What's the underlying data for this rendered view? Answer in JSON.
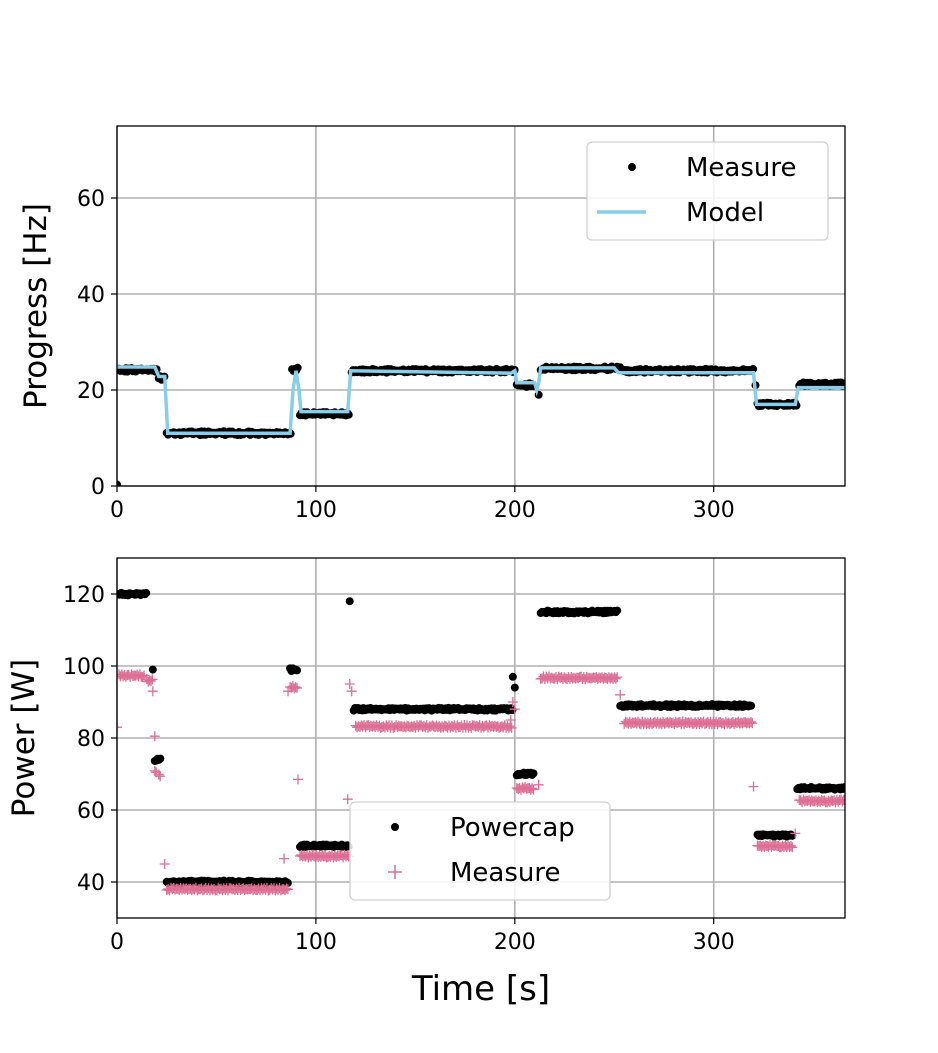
{
  "chart_data": [
    {
      "type": "scatter",
      "ylabel": "Progress [Hz]",
      "xlabel": "",
      "xlim": [
        0,
        366
      ],
      "ylim": [
        0,
        75
      ],
      "xticks": [
        0,
        100,
        200,
        300
      ],
      "yticks": [
        0,
        20,
        40,
        60
      ],
      "grid": true,
      "legend": {
        "placement": "top-right",
        "entries": [
          "Measure",
          "Model"
        ]
      },
      "series": [
        {
          "name": "Measure",
          "kind": "points",
          "color": "#000000",
          "steps": [
            [
              0,
              0,
              0.3
            ],
            [
              1,
              20,
              24.2
            ],
            [
              21,
              24,
              22.5
            ],
            [
              25,
              88,
              11
            ],
            [
              88,
              91,
              24.3
            ],
            [
              92,
              117,
              15
            ],
            [
              118,
              200,
              24
            ],
            [
              201,
              210,
              21
            ],
            [
              212,
              212,
              19
            ],
            [
              213,
              253,
              24.5
            ],
            [
              254,
              320,
              24
            ],
            [
              321,
              321,
              21
            ],
            [
              322,
              342,
              17
            ],
            [
              343,
              366,
              21.2
            ]
          ]
        },
        {
          "name": "Model",
          "kind": "line",
          "color": "#87ceeb",
          "points": [
            [
              0,
              24.8
            ],
            [
              19,
              24.8
            ],
            [
              21,
              22.8
            ],
            [
              24,
              22.8
            ],
            [
              25.5,
              11
            ],
            [
              87,
              11
            ],
            [
              88.5,
              20
            ],
            [
              90,
              24
            ],
            [
              91.5,
              20
            ],
            [
              92.5,
              15.5
            ],
            [
              116,
              15.5
            ],
            [
              117.5,
              24
            ],
            [
              198,
              23.5
            ],
            [
              200,
              24
            ],
            [
              201,
              21.5
            ],
            [
              210,
              21.5
            ],
            [
              211,
              20
            ],
            [
              212,
              21.5
            ],
            [
              213,
              24.6
            ],
            [
              250,
              24.6
            ],
            [
              252,
              23.6
            ],
            [
              320,
              23.6
            ],
            [
              321.5,
              17
            ],
            [
              341,
              17
            ],
            [
              342.5,
              20.5
            ],
            [
              366,
              20.5
            ]
          ]
        }
      ]
    },
    {
      "type": "scatter",
      "ylabel": "Power [W]",
      "xlabel": "Time [s]",
      "xlim": [
        0,
        366
      ],
      "ylim": [
        30,
        130
      ],
      "xticks": [
        0,
        100,
        200,
        300
      ],
      "yticks": [
        40,
        60,
        80,
        100,
        120
      ],
      "grid": true,
      "legend": {
        "placement": "lower-center",
        "entries": [
          "Powercap",
          "Measure"
        ]
      },
      "series": [
        {
          "name": "Powercap",
          "marker": "dot",
          "color": "#000000",
          "steps": [
            [
              0,
              15,
              120
            ],
            [
              18,
              18,
              99
            ],
            [
              19,
              22,
              74
            ],
            [
              25,
              86,
              40
            ],
            [
              87,
              91,
              99
            ],
            [
              92,
              117,
              50
            ],
            [
              117,
              117,
              118
            ],
            [
              119,
              199,
              88
            ],
            [
              199,
              199,
              97
            ],
            [
              200,
              200,
              94
            ],
            [
              201,
              210,
              70
            ],
            [
              213,
              252,
              115
            ],
            [
              253,
              319,
              89
            ],
            [
              322,
              340,
              53
            ],
            [
              342,
              366,
              66
            ]
          ]
        },
        {
          "name": "Measure",
          "marker": "plus",
          "color": "#dd6e94",
          "steps": [
            [
              0,
              0,
              83
            ],
            [
              1,
              14,
              97.3
            ],
            [
              15,
              18,
              96
            ],
            [
              18,
              18,
              93
            ],
            [
              19,
              19,
              80.5
            ],
            [
              19,
              20,
              70.5
            ],
            [
              21,
              22,
              69.5
            ],
            [
              24,
              24,
              45
            ],
            [
              25,
              86,
              38
            ],
            [
              84,
              84,
              46.5
            ],
            [
              86,
              86,
              93
            ],
            [
              87,
              91,
              94
            ],
            [
              91,
              91,
              68.5
            ],
            [
              92,
              117,
              47.2
            ],
            [
              116,
              116,
              63
            ],
            [
              117,
              117,
              95
            ],
            [
              118,
              118,
              93
            ],
            [
              120,
              199,
              83.2
            ],
            [
              198,
              198,
              85
            ],
            [
              199,
              199,
              90
            ],
            [
              200,
              200,
              88
            ],
            [
              201,
              210,
              66
            ],
            [
              212,
              212,
              67
            ],
            [
              213,
              252,
              96.7
            ],
            [
              253,
              253,
              92
            ],
            [
              255,
              320,
              84.2
            ],
            [
              320,
              320,
              66.5
            ],
            [
              322,
              340,
              50
            ],
            [
              341,
              341,
              53.5
            ],
            [
              343,
              366,
              62.5
            ]
          ]
        }
      ]
    }
  ]
}
